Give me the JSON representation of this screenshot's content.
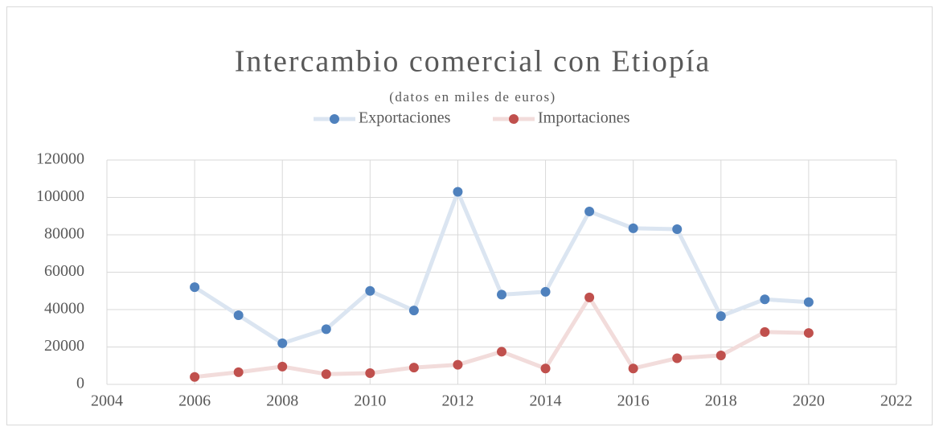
{
  "chart_data": {
    "type": "line",
    "title": "Intercambio comercial con Etiopía",
    "subtitle": "(datos en miles de euros)",
    "x": [
      2006,
      2007,
      2008,
      2009,
      2010,
      2011,
      2012,
      2013,
      2014,
      2015,
      2016,
      2017,
      2018,
      2019,
      2020
    ],
    "series": [
      {
        "name": "Exportaciones",
        "color": "#4f81bd",
        "line_color": "#dbe5f1",
        "values": [
          52000,
          37000,
          22000,
          29500,
          50000,
          39500,
          103000,
          48000,
          49500,
          92500,
          83500,
          83000,
          36500,
          45500,
          44000
        ]
      },
      {
        "name": "Importaciones",
        "color": "#c0504d",
        "line_color": "#f2dcdb",
        "values": [
          4000,
          6500,
          9500,
          5500,
          6000,
          9000,
          10500,
          17500,
          8500,
          46500,
          8500,
          14000,
          15500,
          28000,
          27500
        ]
      }
    ],
    "xlim": [
      2004,
      2022
    ],
    "xticks": [
      2004,
      2006,
      2008,
      2010,
      2012,
      2014,
      2016,
      2018,
      2020,
      2022
    ],
    "ylim": [
      0,
      120000
    ],
    "yticks": [
      0,
      20000,
      40000,
      60000,
      80000,
      100000,
      120000
    ],
    "grid": true,
    "legend": "top"
  }
}
